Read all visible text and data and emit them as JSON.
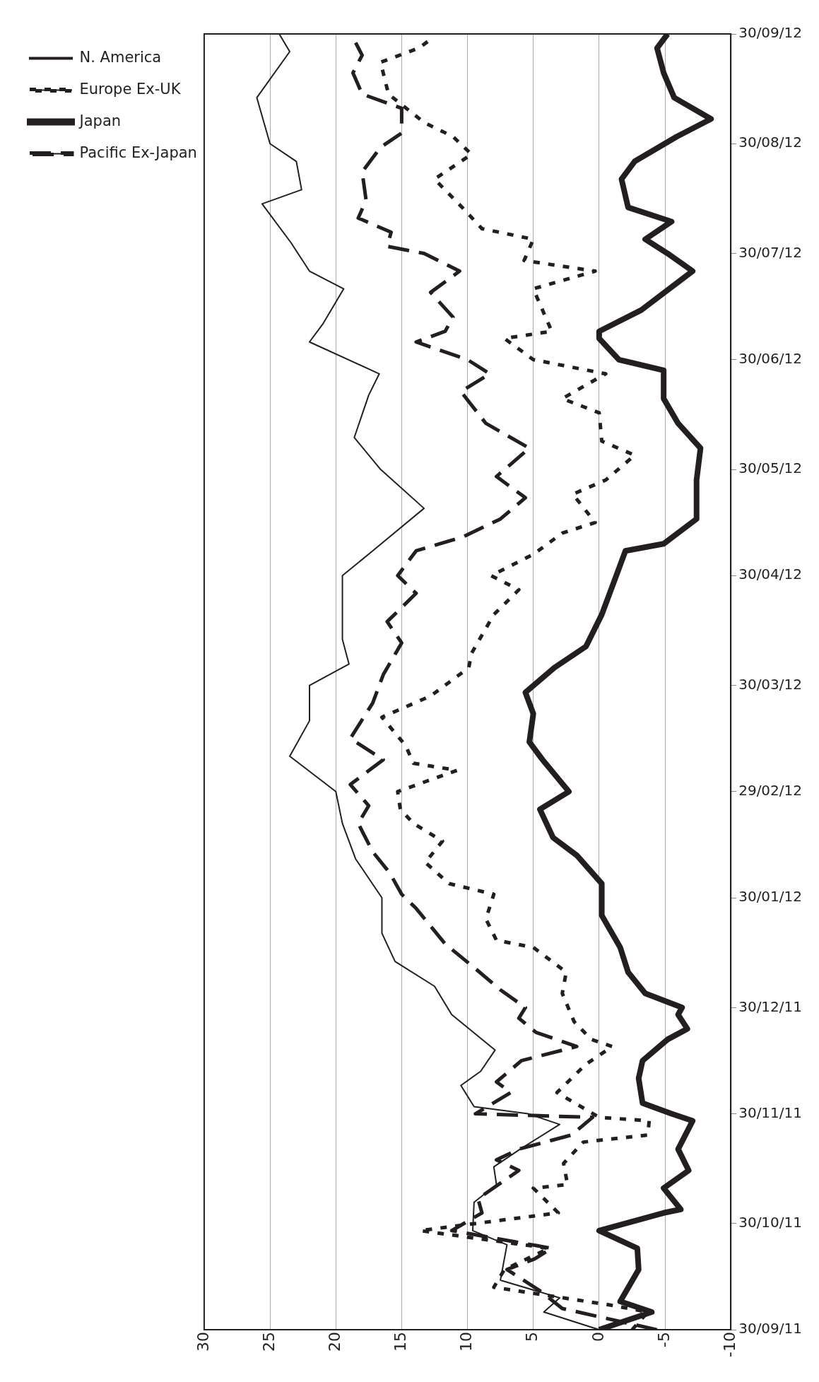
{
  "chart_data": {
    "type": "line",
    "orientation": "horizontal",
    "legend": "left",
    "grid": "x",
    "marker": "none",
    "xlim": [
      30,
      -10
    ],
    "xticks": [
      30,
      25,
      20,
      15,
      10,
      5,
      0,
      -5,
      -10
    ],
    "ylim": [
      "2011-09-30",
      "2012-09-30"
    ],
    "yticks": [
      {
        "value": "2011-09-30",
        "label": "30/09/11"
      },
      {
        "value": "2011-10-30",
        "label": "30/10/11"
      },
      {
        "value": "2011-11-30",
        "label": "30/11/11"
      },
      {
        "value": "2011-12-30",
        "label": "30/12/11"
      },
      {
        "value": "2012-01-30",
        "label": "30/01/12"
      },
      {
        "value": "2012-02-29",
        "label": "29/02/12"
      },
      {
        "value": "2012-03-30",
        "label": "30/03/12"
      },
      {
        "value": "2012-04-30",
        "label": "30/04/12"
      },
      {
        "value": "2012-05-30",
        "label": "30/05/12"
      },
      {
        "value": "2012-06-30",
        "label": "30/06/12"
      },
      {
        "value": "2012-07-30",
        "label": "30/07/12"
      },
      {
        "value": "2012-08-30",
        "label": "30/08/12"
      },
      {
        "value": "2012-09-30",
        "label": "30/09/12"
      }
    ],
    "series": [
      {
        "name": "N. America",
        "color": "#231f20",
        "line_style": "solid",
        "x": [
          "2011-09-30",
          "2011-10-05",
          "2011-10-09",
          "2011-10-14",
          "2011-10-24",
          "2011-10-28",
          "2011-11-05",
          "2011-11-10",
          "2011-11-15",
          "2011-11-20",
          "2011-11-27",
          "2011-11-30",
          "2011-12-02",
          "2011-12-08",
          "2011-12-12",
          "2011-12-18",
          "2011-12-28",
          "2012-01-05",
          "2012-01-12",
          "2012-01-20",
          "2012-01-30",
          "2012-02-10",
          "2012-02-20",
          "2012-02-29",
          "2012-03-10",
          "2012-03-20",
          "2012-03-30",
          "2012-04-05",
          "2012-04-12",
          "2012-04-20",
          "2012-04-30",
          "2012-05-07",
          "2012-05-19",
          "2012-05-30",
          "2012-06-08",
          "2012-06-20",
          "2012-06-26",
          "2012-07-05",
          "2012-07-10",
          "2012-07-20",
          "2012-07-25",
          "2012-08-02",
          "2012-08-13",
          "2012-08-17",
          "2012-08-25",
          "2012-08-30",
          "2012-09-12",
          "2012-09-25",
          "2012-09-30"
        ],
        "values": [
          0,
          4.2,
          3,
          7.5,
          7,
          9.6,
          9.5,
          7.8,
          8,
          6,
          3,
          5.4,
          9.5,
          10.5,
          9,
          7.9,
          11.2,
          12.5,
          15.5,
          16.5,
          16.5,
          18.5,
          19.5,
          20,
          23.5,
          22,
          22,
          19,
          19.5,
          19.5,
          19.5,
          17.2,
          13.3,
          16.6,
          18.6,
          17.5,
          16.7,
          22,
          21,
          19.4,
          22,
          23.4,
          25.6,
          22.6,
          23,
          25,
          26,
          23.5,
          24.3
        ]
      },
      {
        "name": "Europe Ex-UK",
        "color": "#231f20",
        "line_style": "dotted",
        "x": [
          "2011-09-30",
          "2011-10-05",
          "2011-10-07",
          "2011-10-12",
          "2011-10-17",
          "2011-10-23",
          "2011-10-28",
          "2011-11-02",
          "2011-11-09",
          "2011-11-10",
          "2011-11-16",
          "2011-11-22",
          "2011-11-24",
          "2011-11-28",
          "2011-11-29",
          "2011-12-06",
          "2011-12-14",
          "2011-12-19",
          "2011-12-21",
          "2011-12-26",
          "2012-01-03",
          "2012-01-09",
          "2012-01-16",
          "2012-01-18",
          "2012-01-24",
          "2012-01-31",
          "2012-02-03",
          "2012-02-09",
          "2012-02-15",
          "2012-02-20",
          "2012-02-24",
          "2012-02-29",
          "2012-03-06",
          "2012-03-08",
          "2012-03-13",
          "2012-03-21",
          "2012-03-27",
          "2012-04-04",
          "2012-04-08",
          "2012-04-19",
          "2012-04-26",
          "2012-04-30",
          "2012-05-06",
          "2012-05-12",
          "2012-05-15",
          "2012-05-23",
          "2012-05-27",
          "2012-06-03",
          "2012-06-07",
          "2012-06-15",
          "2012-06-19",
          "2012-06-26",
          "2012-06-30",
          "2012-07-06",
          "2012-07-08",
          "2012-07-20",
          "2012-07-25",
          "2012-07-28",
          "2012-08-03",
          "2012-08-06",
          "2012-08-12",
          "2012-08-20",
          "2012-08-27",
          "2012-09-01",
          "2012-09-05",
          "2012-09-13",
          "2012-09-22",
          "2012-09-26",
          "2012-09-29"
        ],
        "values": [
          -2.5,
          -3.7,
          -0.8,
          8,
          7.2,
          3.8,
          13.6,
          3.1,
          5,
          2.4,
          2.7,
          1.2,
          -3.7,
          -3.8,
          0,
          3.2,
          1,
          -1,
          0.6,
          1.9,
          2.8,
          2.5,
          5,
          7.8,
          8.6,
          8,
          11.4,
          13.2,
          11.9,
          14.1,
          15.1,
          15.3,
          10.8,
          14.1,
          14.7,
          16.5,
          12.8,
          9.9,
          9.7,
          8,
          6.1,
          8.2,
          5,
          2.8,
          0.3,
          2,
          -0.5,
          -2.7,
          -0.2,
          0,
          2.8,
          -0.5,
          5,
          7.2,
          3.6,
          5,
          0.3,
          5.7,
          5,
          8.9,
          10.4,
          12.5,
          9.7,
          11.1,
          13.3,
          16,
          16.6,
          13.7,
          12.6
        ]
      },
      {
        "name": "Japan",
        "color": "#231f20",
        "line_style": "solid",
        "x": [
          "2011-09-30",
          "2011-10-05",
          "2011-10-08",
          "2011-10-17",
          "2011-10-23",
          "2011-10-28",
          "2011-11-02",
          "2011-11-03",
          "2011-11-09",
          "2011-11-14",
          "2011-11-20",
          "2011-11-28",
          "2011-11-30",
          "2011-12-03",
          "2011-12-10",
          "2011-12-15",
          "2011-12-21",
          "2011-12-24",
          "2011-12-28",
          "2011-12-30",
          "2012-01-03",
          "2012-01-09",
          "2012-01-16",
          "2012-01-25",
          "2012-02-03",
          "2012-02-11",
          "2012-02-16",
          "2012-02-24",
          "2012-02-29",
          "2012-03-09",
          "2012-03-14",
          "2012-03-22",
          "2012-03-28",
          "2012-04-04",
          "2012-04-10",
          "2012-04-19",
          "2012-04-30",
          "2012-05-07",
          "2012-05-09",
          "2012-05-16",
          "2012-05-27",
          "2012-06-05",
          "2012-06-12",
          "2012-06-19",
          "2012-06-27",
          "2012-06-30",
          "2012-07-06",
          "2012-07-08",
          "2012-07-14",
          "2012-07-25",
          "2012-07-30",
          "2012-08-03",
          "2012-08-08",
          "2012-08-12",
          "2012-08-20",
          "2012-08-25",
          "2012-09-01",
          "2012-09-06",
          "2012-09-12",
          "2012-09-19",
          "2012-09-26",
          "2012-09-30"
        ],
        "values": [
          0,
          -4,
          -1.6,
          -3,
          -2.9,
          0,
          -4.9,
          -6.2,
          -4.9,
          -6.8,
          -6,
          -7.1,
          -5.5,
          -3.3,
          -3,
          -3.3,
          -5.2,
          -6.7,
          -6,
          -6.3,
          -3.5,
          -2.2,
          -1.6,
          -0.2,
          -0.2,
          1.7,
          3.5,
          4.5,
          2.3,
          4.3,
          5.3,
          5,
          5.6,
          3.4,
          1,
          -0.2,
          -1.3,
          -2,
          -4.9,
          -7.4,
          -7.4,
          -7.7,
          -6,
          -4.9,
          -4.9,
          -1.5,
          0,
          0,
          -3.2,
          -7.1,
          -5.2,
          -3.5,
          -5.5,
          -2.2,
          -1.7,
          -2.7,
          -5.9,
          -8.5,
          -5.7,
          -4.9,
          -4.4,
          -5.2
        ]
      },
      {
        "name": "Pacific Ex-Japan",
        "color": "#231f20",
        "line_style": "dashed",
        "x": [
          "2011-09-30",
          "2011-10-06",
          "2011-10-11",
          "2011-10-17",
          "2011-10-20",
          "2011-10-23",
          "2011-10-28",
          "2011-11-02",
          "2011-11-06",
          "2011-11-14",
          "2011-11-17",
          "2011-11-20",
          "2011-11-24",
          "2011-11-29",
          "2011-11-30",
          "2011-12-06",
          "2011-12-09",
          "2011-12-15",
          "2011-12-19",
          "2011-12-23",
          "2011-12-27",
          "2011-12-30",
          "2012-01-04",
          "2012-01-10",
          "2012-01-17",
          "2012-01-27",
          "2012-01-31",
          "2012-02-06",
          "2012-02-12",
          "2012-02-20",
          "2012-02-25",
          "2012-03-02",
          "2012-03-09",
          "2012-03-15",
          "2012-03-25",
          "2012-04-02",
          "2012-04-11",
          "2012-04-17",
          "2012-04-25",
          "2012-04-30",
          "2012-05-07",
          "2012-05-11",
          "2012-05-16",
          "2012-05-22",
          "2012-05-28",
          "2012-06-05",
          "2012-06-12",
          "2012-06-21",
          "2012-06-26",
          "2012-06-30",
          "2012-07-05",
          "2012-07-08",
          "2012-07-12",
          "2012-07-19",
          "2012-07-25",
          "2012-07-30",
          "2012-08-01",
          "2012-08-05",
          "2012-08-09",
          "2012-08-14",
          "2012-08-22",
          "2012-08-29",
          "2012-09-02",
          "2012-09-09",
          "2012-09-13",
          "2012-09-19",
          "2012-09-24",
          "2012-09-29"
        ],
        "values": [
          -4.4,
          2.8,
          4.5,
          7,
          4.9,
          3.6,
          11.2,
          8.9,
          9.2,
          6.1,
          7.8,
          6.1,
          2.1,
          0.5,
          9.4,
          6.7,
          7.8,
          5.9,
          1.7,
          4.8,
          6.1,
          5.6,
          7.5,
          9.4,
          11.7,
          13.9,
          15,
          15.9,
          17.2,
          18.3,
          17.5,
          18.9,
          16.4,
          18.9,
          17.2,
          16.4,
          15,
          16.1,
          13.9,
          15.3,
          13.9,
          10.3,
          7.5,
          5.6,
          7.8,
          5.3,
          8.6,
          10.5,
          8.3,
          10,
          13.9,
          11.7,
          11.1,
          12.8,
          10.6,
          13.3,
          16.1,
          15.8,
          18.3,
          17.7,
          18,
          16.6,
          15,
          15,
          18,
          18.7,
          18,
          18.7
        ]
      }
    ]
  }
}
